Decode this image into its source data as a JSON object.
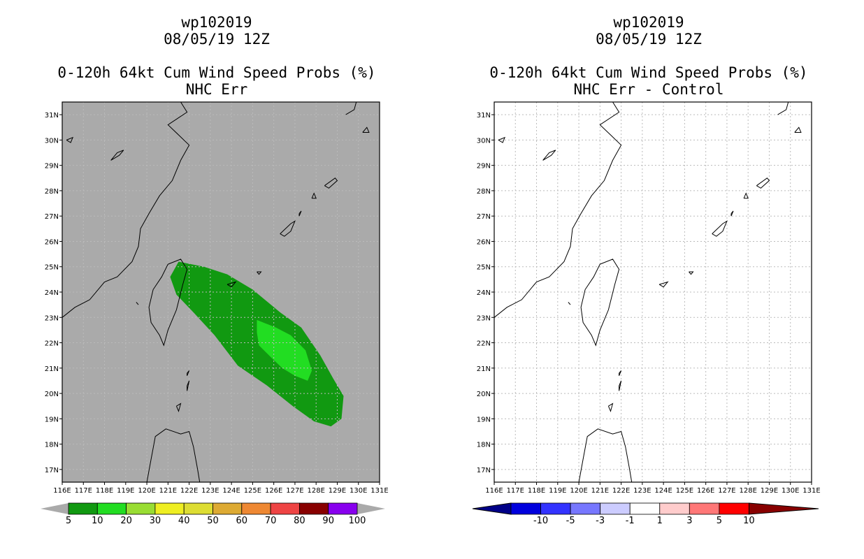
{
  "left_panel": {
    "storm_id": "wp102019",
    "datetime": "08/05/19 12Z",
    "product": "0-120h 64kt Cum Wind Speed Probs (%)",
    "subtitle": "NHC Err"
  },
  "right_panel": {
    "storm_id": "wp102019",
    "datetime": "08/05/19 12Z",
    "product": "0-120h 64kt Cum Wind Speed Probs (%)",
    "subtitle": "NHC Err - Control"
  },
  "chart_data": [
    {
      "type": "heatmap",
      "title": "0-120h 64kt Cum Wind Speed Probs (%)",
      "subtitle": "NHC Err",
      "xlim": [
        116,
        131
      ],
      "ylim": [
        16.5,
        31.5
      ],
      "x_ticks": [
        "116E",
        "117E",
        "118E",
        "119E",
        "120E",
        "121E",
        "122E",
        "123E",
        "124E",
        "125E",
        "126E",
        "127E",
        "128E",
        "129E",
        "130E",
        "131E"
      ],
      "y_ticks": [
        "17N",
        "18N",
        "19N",
        "20N",
        "21N",
        "22N",
        "23N",
        "24N",
        "25N",
        "26N",
        "27N",
        "28N",
        "29N",
        "30N",
        "31N"
      ],
      "background_color": "#aaaaaa",
      "contours": [
        {
          "level": "5-10",
          "color": "#119911",
          "polygon": [
            [
              121.5,
              25.2
            ],
            [
              122.7,
              25.0
            ],
            [
              123.8,
              24.7
            ],
            [
              125.0,
              24.1
            ],
            [
              126.3,
              23.2
            ],
            [
              127.3,
              22.6
            ],
            [
              128.2,
              21.5
            ],
            [
              128.8,
              20.6
            ],
            [
              129.3,
              19.9
            ],
            [
              129.2,
              19.0
            ],
            [
              128.7,
              18.7
            ],
            [
              127.9,
              18.9
            ],
            [
              126.9,
              19.5
            ],
            [
              125.7,
              20.3
            ],
            [
              124.3,
              21.1
            ],
            [
              123.2,
              22.3
            ],
            [
              122.2,
              23.2
            ],
            [
              121.4,
              23.9
            ],
            [
              121.1,
              24.6
            ]
          ]
        },
        {
          "level": "10-20",
          "color": "#22dd22",
          "polygon": [
            [
              125.2,
              22.9
            ],
            [
              126.1,
              22.6
            ],
            [
              126.8,
              22.3
            ],
            [
              127.5,
              21.7
            ],
            [
              127.8,
              20.9
            ],
            [
              127.6,
              20.5
            ],
            [
              127.0,
              20.7
            ],
            [
              126.4,
              21.0
            ],
            [
              125.9,
              21.4
            ],
            [
              125.3,
              21.9
            ],
            [
              125.2,
              22.4
            ]
          ]
        }
      ],
      "colorbar": {
        "levels": [
          "5",
          "10",
          "20",
          "30",
          "40",
          "50",
          "60",
          "70",
          "80",
          "90",
          "100"
        ],
        "colors": [
          "#119911",
          "#22dd22",
          "#99dd33",
          "#eeee22",
          "#dddd33",
          "#ddaa33",
          "#ee8833",
          "#ee4444",
          "#880000",
          "#8800ee"
        ]
      }
    },
    {
      "type": "heatmap",
      "title": "0-120h 64kt Cum Wind Speed Probs (%)",
      "subtitle": "NHC Err - Control",
      "xlim": [
        116,
        131
      ],
      "ylim": [
        16.5,
        31.5
      ],
      "x_ticks": [
        "116E",
        "117E",
        "118E",
        "119E",
        "120E",
        "121E",
        "122E",
        "123E",
        "124E",
        "125E",
        "126E",
        "127E",
        "128E",
        "129E",
        "130E",
        "131E"
      ],
      "y_ticks": [
        "17N",
        "18N",
        "19N",
        "20N",
        "21N",
        "22N",
        "23N",
        "24N",
        "25N",
        "26N",
        "27N",
        "28N",
        "29N",
        "30N",
        "31N"
      ],
      "background_color": "#ffffff",
      "grid": true,
      "contours": [],
      "colorbar": {
        "levels": [
          "-10",
          "-5",
          "-3",
          "-1",
          "1",
          "3",
          "5",
          "10"
        ],
        "colors": [
          "#0000dd",
          "#3333ff",
          "#7777ff",
          "#ccccff",
          "#ffffff",
          "#ffcccc",
          "#ff7777",
          "#ff0000",
          "#880000"
        ]
      }
    }
  ]
}
